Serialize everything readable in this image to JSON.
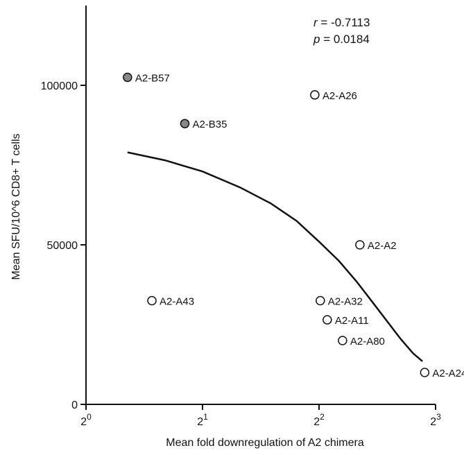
{
  "chart_data": {
    "type": "scatter",
    "title": "",
    "xlabel": "Mean fold downregulation of A2 chimera",
    "ylabel": "Mean SFU/10^6 CD8+ T cells",
    "x_scale": "log2",
    "xlim": [
      1,
      8
    ],
    "ylim": [
      0,
      125000
    ],
    "x_ticks": [
      {
        "value": 1,
        "base": "2",
        "exp": "0"
      },
      {
        "value": 2,
        "base": "2",
        "exp": "1"
      },
      {
        "value": 4,
        "base": "2",
        "exp": "2"
      },
      {
        "value": 8,
        "base": "2",
        "exp": "3"
      }
    ],
    "y_ticks": [
      {
        "value": 0,
        "label": "0"
      },
      {
        "value": 50000,
        "label": "50000"
      },
      {
        "value": 100000,
        "label": "100000"
      }
    ],
    "stats": {
      "r_symbol": "r",
      "r_value": " = -0.7113",
      "p_symbol": "p",
      "p_value": " = 0.0184"
    },
    "points": [
      {
        "label": "A2-B57",
        "x": 1.28,
        "y": 102500,
        "filled": true
      },
      {
        "label": "A2-B35",
        "x": 1.8,
        "y": 88000,
        "filled": true
      },
      {
        "label": "A2-A43",
        "x": 1.48,
        "y": 32500,
        "filled": false
      },
      {
        "label": "A2-A26",
        "x": 3.9,
        "y": 97000,
        "filled": false
      },
      {
        "label": "A2-A2",
        "x": 5.1,
        "y": 50000,
        "filled": false
      },
      {
        "label": "A2-A32",
        "x": 4.03,
        "y": 32500,
        "filled": false
      },
      {
        "label": "A2-A11",
        "x": 4.2,
        "y": 26500,
        "filled": false
      },
      {
        "label": "A2-A80",
        "x": 4.6,
        "y": 20000,
        "filled": false
      },
      {
        "label": "A2-A24",
        "x": 7.5,
        "y": 10000,
        "filled": false
      }
    ],
    "fit_curve": {
      "x": [
        1.28,
        1.6,
        2.0,
        2.5,
        3.0,
        3.5,
        4.0,
        4.5,
        5.0,
        5.5,
        6.0,
        6.5,
        7.0,
        7.4
      ],
      "y": [
        79000,
        76500,
        73000,
        68000,
        63000,
        57500,
        51000,
        45000,
        38500,
        32000,
        26000,
        20500,
        16000,
        13500
      ]
    },
    "colors": {
      "filled_point": "#888888",
      "open_point": "#ffffff",
      "stroke": "#111111"
    }
  }
}
